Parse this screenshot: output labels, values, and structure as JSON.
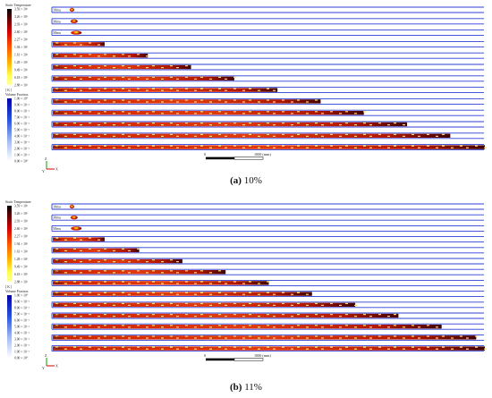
{
  "panels": [
    {
      "caption_letter": "(a)",
      "caption_text": "10%",
      "temp_title": "Static Temperature",
      "temp_ticks": [
        "3.59 × 10³",
        "3.26 × 10³",
        "2.93 × 10³",
        "2.60 × 10³",
        "2.27 × 10³",
        "1.94 × 10³",
        "1.61 × 10³",
        "1.28 × 10³",
        "9.49 × 10²",
        "6.18 × 10²",
        "2.88 × 10²"
      ],
      "unit": "[ K ]",
      "vf_title": "Volume Fraction",
      "vf_ticks": [
        "1.00 × 10⁰",
        "9.00 × 10⁻¹",
        "8.00 × 10⁻¹",
        "7.00 × 10⁻¹",
        "6.00 × 10⁻¹",
        "5.00 × 10⁻¹",
        "4.00 × 10⁻¹",
        "3.00 × 10⁻¹",
        "2.00 × 10⁻¹",
        "1.00 × 10⁻¹",
        "0.00 × 10⁰"
      ],
      "times": [
        "10ms",
        "30ms",
        "50ms",
        "70ms",
        "85ms",
        "100ms",
        "115ms",
        "130ms",
        "145ms",
        "160ms",
        "175ms",
        "190ms",
        "205ms"
      ],
      "flame_fraction": [
        0.02,
        0.04,
        0.06,
        0.12,
        0.22,
        0.32,
        0.42,
        0.52,
        0.62,
        0.72,
        0.82,
        0.92,
        1.0
      ],
      "scale_left": "0",
      "scale_right": "1000 (mm)",
      "axis_z": "Z",
      "axis_x": "X",
      "axis_y": "Y"
    },
    {
      "caption_letter": "(b)",
      "caption_text": "11%",
      "temp_title": "Static Temperature",
      "temp_ticks": [
        "3.59 × 10³",
        "3.26 × 10³",
        "2.93 × 10³",
        "2.60 × 10³",
        "2.27 × 10³",
        "1.94 × 10³",
        "1.61 × 10³",
        "1.28 × 10³",
        "9.49 × 10²",
        "6.18 × 10²",
        "2.88 × 10²"
      ],
      "unit": "[ K ]",
      "vf_title": "Volume Fraction",
      "vf_ticks": [
        "1.00 × 10⁰",
        "9.00 × 10⁻¹",
        "8.00 × 10⁻¹",
        "7.00 × 10⁻¹",
        "6.00 × 10⁻¹",
        "5.00 × 10⁻¹",
        "4.00 × 10⁻¹",
        "3.00 × 10⁻¹",
        "2.00 × 10⁻¹",
        "1.00 × 10⁻¹",
        "0.00 × 10⁰"
      ],
      "times": [
        "10ms",
        "30ms",
        "50ms",
        "70ms",
        "85ms",
        "100ms",
        "115ms",
        "130ms",
        "145ms",
        "160ms",
        "177ms",
        "190ms",
        "205ms",
        "210ms"
      ],
      "flame_fraction": [
        0.02,
        0.04,
        0.06,
        0.12,
        0.2,
        0.3,
        0.4,
        0.5,
        0.6,
        0.7,
        0.8,
        0.9,
        0.98,
        1.0
      ],
      "scale_left": "0",
      "scale_right": "1000 (mm)",
      "axis_z": "Z",
      "axis_x": "X",
      "axis_y": "Y"
    }
  ]
}
